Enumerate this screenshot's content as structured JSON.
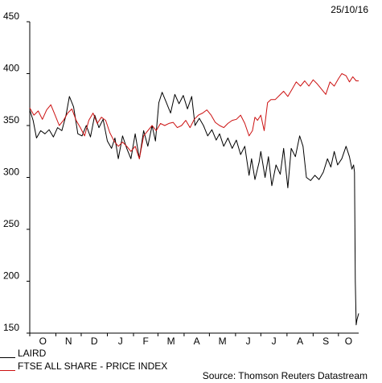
{
  "date_label": "25/10/16",
  "source": "Source: Thomson Reuters Datastream",
  "chart_data": {
    "type": "line",
    "title": "",
    "xlabel": "",
    "ylabel": "",
    "ylim": [
      150,
      450
    ],
    "yticks": [
      150,
      200,
      250,
      300,
      350,
      400,
      450
    ],
    "xlim": [
      "2015-10-01",
      "2016-10-25"
    ],
    "xticks": [
      {
        "label": "O",
        "date": "2015-10-01"
      },
      {
        "label": "N",
        "date": "2015-11-01"
      },
      {
        "label": "D",
        "date": "2015-12-01"
      },
      {
        "label": "J",
        "date": "2016-01-01"
      },
      {
        "label": "F",
        "date": "2016-02-01"
      },
      {
        "label": "M",
        "date": "2016-03-01"
      },
      {
        "label": "A",
        "date": "2016-04-01"
      },
      {
        "label": "M",
        "date": "2016-05-01"
      },
      {
        "label": "J",
        "date": "2016-06-01"
      },
      {
        "label": "J",
        "date": "2016-07-01"
      },
      {
        "label": "A",
        "date": "2016-08-01"
      },
      {
        "label": "S",
        "date": "2016-09-01"
      },
      {
        "label": "O",
        "date": "2016-10-01"
      }
    ],
    "grid": false,
    "legend_position": "bottom-left",
    "series": [
      {
        "name": "LAIRD",
        "color": "#000000",
        "points": [
          [
            "2015-10-01",
            365
          ],
          [
            "2015-10-05",
            355
          ],
          [
            "2015-10-09",
            338
          ],
          [
            "2015-10-14",
            345
          ],
          [
            "2015-10-19",
            342
          ],
          [
            "2015-10-24",
            346
          ],
          [
            "2015-10-29",
            339
          ],
          [
            "2015-11-03",
            348
          ],
          [
            "2015-11-08",
            345
          ],
          [
            "2015-11-13",
            360
          ],
          [
            "2015-11-17",
            378
          ],
          [
            "2015-11-22",
            368
          ],
          [
            "2015-11-27",
            342
          ],
          [
            "2015-12-02",
            340
          ],
          [
            "2015-12-07",
            350
          ],
          [
            "2015-12-12",
            339
          ],
          [
            "2015-12-17",
            360
          ],
          [
            "2015-12-22",
            348
          ],
          [
            "2015-12-27",
            356
          ],
          [
            "2016-01-01",
            335
          ],
          [
            "2016-01-06",
            328
          ],
          [
            "2016-01-10",
            338
          ],
          [
            "2016-01-14",
            318
          ],
          [
            "2016-01-19",
            340
          ],
          [
            "2016-01-24",
            328
          ],
          [
            "2016-01-29",
            318
          ],
          [
            "2016-02-03",
            342
          ],
          [
            "2016-02-08",
            318
          ],
          [
            "2016-02-13",
            345
          ],
          [
            "2016-02-18",
            330
          ],
          [
            "2016-02-23",
            350
          ],
          [
            "2016-02-27",
            335
          ],
          [
            "2016-03-02",
            372
          ],
          [
            "2016-03-06",
            382
          ],
          [
            "2016-03-11",
            372
          ],
          [
            "2016-03-16",
            362
          ],
          [
            "2016-03-21",
            380
          ],
          [
            "2016-03-26",
            371
          ],
          [
            "2016-03-31",
            379
          ],
          [
            "2016-04-05",
            366
          ],
          [
            "2016-04-10",
            378
          ],
          [
            "2016-04-14",
            350
          ],
          [
            "2016-04-19",
            357
          ],
          [
            "2016-04-24",
            350
          ],
          [
            "2016-04-29",
            340
          ],
          [
            "2016-05-04",
            346
          ],
          [
            "2016-05-09",
            336
          ],
          [
            "2016-05-13",
            342
          ],
          [
            "2016-05-18",
            330
          ],
          [
            "2016-05-23",
            338
          ],
          [
            "2016-05-28",
            328
          ],
          [
            "2016-06-02",
            336
          ],
          [
            "2016-06-07",
            322
          ],
          [
            "2016-06-12",
            330
          ],
          [
            "2016-06-17",
            302
          ],
          [
            "2016-06-20",
            318
          ],
          [
            "2016-06-24",
            298
          ],
          [
            "2016-06-29",
            315
          ],
          [
            "2016-07-01",
            325
          ],
          [
            "2016-07-06",
            300
          ],
          [
            "2016-07-10",
            320
          ],
          [
            "2016-07-14",
            292
          ],
          [
            "2016-07-19",
            312
          ],
          [
            "2016-07-24",
            303
          ],
          [
            "2016-07-28",
            328
          ],
          [
            "2016-08-02",
            290
          ],
          [
            "2016-08-06",
            328
          ],
          [
            "2016-08-11",
            320
          ],
          [
            "2016-08-16",
            340
          ],
          [
            "2016-08-20",
            330
          ],
          [
            "2016-08-24",
            300
          ],
          [
            "2016-08-29",
            297
          ],
          [
            "2016-09-03",
            302
          ],
          [
            "2016-09-08",
            298
          ],
          [
            "2016-09-13",
            305
          ],
          [
            "2016-09-18",
            318
          ],
          [
            "2016-09-22",
            310
          ],
          [
            "2016-09-26",
            325
          ],
          [
            "2016-09-30",
            312
          ],
          [
            "2016-10-05",
            318
          ],
          [
            "2016-10-10",
            330
          ],
          [
            "2016-10-14",
            320
          ],
          [
            "2016-10-17",
            308
          ],
          [
            "2016-10-19",
            312
          ],
          [
            "2016-10-20",
            305
          ],
          [
            "2016-10-21",
            200
          ],
          [
            "2016-10-22",
            158
          ],
          [
            "2016-10-23",
            163
          ],
          [
            "2016-10-25",
            169
          ]
        ]
      },
      {
        "name": "FTSE ALL SHARE - PRICE INDEX",
        "color": "#cc1111",
        "points": [
          [
            "2015-10-01",
            367
          ],
          [
            "2015-10-06",
            360
          ],
          [
            "2015-10-11",
            364
          ],
          [
            "2015-10-16",
            356
          ],
          [
            "2015-10-21",
            365
          ],
          [
            "2015-10-26",
            370
          ],
          [
            "2015-10-31",
            360
          ],
          [
            "2015-11-05",
            350
          ],
          [
            "2015-11-10",
            355
          ],
          [
            "2015-11-15",
            362
          ],
          [
            "2015-11-20",
            366
          ],
          [
            "2015-11-25",
            355
          ],
          [
            "2015-11-30",
            348
          ],
          [
            "2015-12-05",
            340
          ],
          [
            "2015-12-10",
            355
          ],
          [
            "2015-12-15",
            362
          ],
          [
            "2015-12-20",
            352
          ],
          [
            "2015-12-25",
            358
          ],
          [
            "2015-12-30",
            355
          ],
          [
            "2016-01-04",
            343
          ],
          [
            "2016-01-09",
            335
          ],
          [
            "2016-01-14",
            330
          ],
          [
            "2016-01-19",
            334
          ],
          [
            "2016-01-24",
            330
          ],
          [
            "2016-01-29",
            325
          ],
          [
            "2016-02-03",
            330
          ],
          [
            "2016-02-08",
            318
          ],
          [
            "2016-02-13",
            340
          ],
          [
            "2016-02-18",
            345
          ],
          [
            "2016-02-23",
            350
          ],
          [
            "2016-02-28",
            345
          ],
          [
            "2016-03-04",
            352
          ],
          [
            "2016-03-09",
            350
          ],
          [
            "2016-03-14",
            352
          ],
          [
            "2016-03-19",
            353
          ],
          [
            "2016-03-24",
            348
          ],
          [
            "2016-03-29",
            350
          ],
          [
            "2016-04-03",
            355
          ],
          [
            "2016-04-08",
            348
          ],
          [
            "2016-04-13",
            356
          ],
          [
            "2016-04-18",
            360
          ],
          [
            "2016-04-23",
            362
          ],
          [
            "2016-04-28",
            365
          ],
          [
            "2016-05-03",
            360
          ],
          [
            "2016-05-08",
            353
          ],
          [
            "2016-05-13",
            350
          ],
          [
            "2016-05-18",
            348
          ],
          [
            "2016-05-23",
            352
          ],
          [
            "2016-05-28",
            355
          ],
          [
            "2016-06-02",
            356
          ],
          [
            "2016-06-07",
            360
          ],
          [
            "2016-06-12",
            352
          ],
          [
            "2016-06-17",
            340
          ],
          [
            "2016-06-21",
            345
          ],
          [
            "2016-06-24",
            358
          ],
          [
            "2016-06-27",
            355
          ],
          [
            "2016-07-01",
            360
          ],
          [
            "2016-07-05",
            345
          ],
          [
            "2016-07-09",
            372
          ],
          [
            "2016-07-13",
            375
          ],
          [
            "2016-07-18",
            375
          ],
          [
            "2016-07-23",
            379
          ],
          [
            "2016-07-28",
            383
          ],
          [
            "2016-08-02",
            378
          ],
          [
            "2016-08-07",
            385
          ],
          [
            "2016-08-12",
            392
          ],
          [
            "2016-08-17",
            388
          ],
          [
            "2016-08-22",
            393
          ],
          [
            "2016-08-27",
            388
          ],
          [
            "2016-09-01",
            394
          ],
          [
            "2016-09-06",
            390
          ],
          [
            "2016-09-11",
            385
          ],
          [
            "2016-09-16",
            380
          ],
          [
            "2016-09-21",
            392
          ],
          [
            "2016-09-26",
            388
          ],
          [
            "2016-10-01",
            395
          ],
          [
            "2016-10-05",
            400
          ],
          [
            "2016-10-10",
            398
          ],
          [
            "2016-10-14",
            392
          ],
          [
            "2016-10-18",
            397
          ],
          [
            "2016-10-22",
            393
          ],
          [
            "2016-10-25",
            393
          ]
        ]
      }
    ]
  }
}
